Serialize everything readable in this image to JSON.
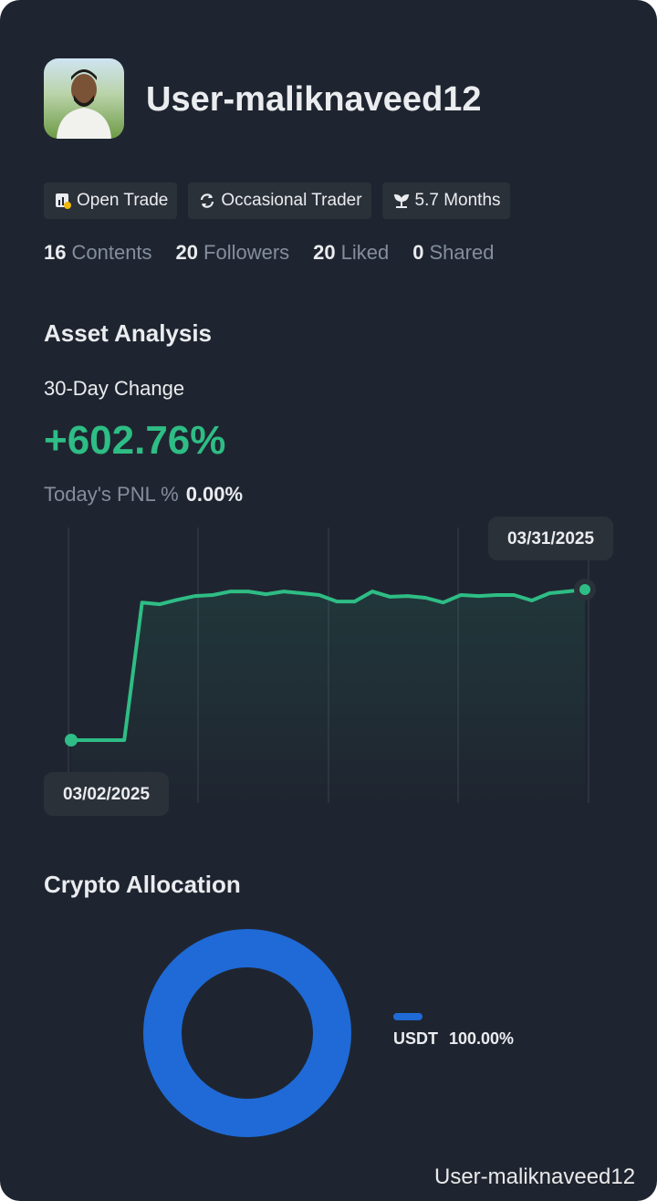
{
  "profile": {
    "name": "User-maliknaveed12",
    "tags": [
      "Open Trade",
      "Occasional Trader",
      "5.7 Months"
    ],
    "stats": [
      {
        "count": 16,
        "label": "Contents"
      },
      {
        "count": 20,
        "label": "Followers"
      },
      {
        "count": 20,
        "label": "Liked"
      },
      {
        "count": 0,
        "label": "Shared"
      }
    ]
  },
  "asset_analysis": {
    "title": "Asset Analysis",
    "change_label": "30-Day Change",
    "change": "+602.76%",
    "pnl_label": "Today's PNL %",
    "pnl": "0.00%"
  },
  "chart_data": [
    {
      "type": "line",
      "categories": [
        "03/02/2025",
        null,
        null,
        null,
        null,
        null,
        null,
        null,
        null,
        null,
        null,
        null,
        null,
        null,
        null,
        null,
        null,
        null,
        null,
        null,
        null,
        null,
        null,
        null,
        null,
        null,
        null,
        null,
        null,
        "03/31/2025"
      ],
      "series": [
        {
          "color": "#2ebd85",
          "values": [
            0,
            0,
            0,
            0,
            551,
            544,
            562,
            577,
            581,
            595,
            595,
            584,
            595,
            588,
            581,
            555,
            555,
            595,
            574,
            577,
            570,
            551,
            581,
            577,
            581,
            581,
            559,
            588,
            595,
            602.76
          ]
        }
      ]
    },
    {
      "type": "pie",
      "title": "Crypto Allocation",
      "categories": [
        "USDT"
      ],
      "values": [
        100
      ],
      "value_labels": [
        "100.00%"
      ],
      "colors": [
        "#1f6ad6"
      ],
      "donut": true
    }
  ],
  "watermark": "User-maliknaveed12"
}
